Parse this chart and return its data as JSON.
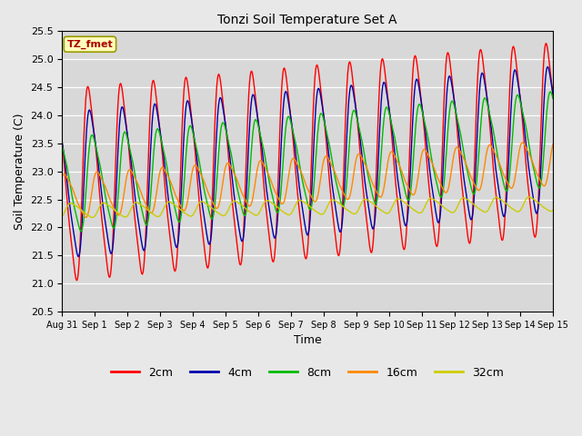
{
  "title": "Tonzi Soil Temperature Set A",
  "xlabel": "Time",
  "ylabel": "Soil Temperature (C)",
  "ylim": [
    20.5,
    25.5
  ],
  "annotation": "TZ_fmet",
  "x_tick_labels": [
    "Aug 31",
    "Sep 1",
    "Sep 2",
    "Sep 3",
    "Sep 4",
    "Sep 5",
    "Sep 6",
    "Sep 7",
    "Sep 8",
    "Sep 9",
    "Sep 10",
    "Sep 11",
    "Sep 12",
    "Sep 13",
    "Sep 14",
    "Sep 15"
  ],
  "legend_entries": [
    "2cm",
    "4cm",
    "8cm",
    "16cm",
    "32cm"
  ],
  "legend_colors": [
    "#ff0000",
    "#0000aa",
    "#00bb00",
    "#ff8800",
    "#cccc00"
  ],
  "series": {
    "2cm": {
      "color": "#ff0000",
      "amplitude": 1.72,
      "base": 22.75,
      "phase": 0.62,
      "trend": 0.055
    },
    "4cm": {
      "color": "#0000aa",
      "amplitude": 1.3,
      "base": 22.75,
      "phase": 0.67,
      "trend": 0.055
    },
    "8cm": {
      "color": "#00bb00",
      "amplitude": 0.85,
      "base": 22.75,
      "phase": 0.75,
      "trend": 0.055
    },
    "16cm": {
      "color": "#ff8800",
      "amplitude": 0.4,
      "base": 22.55,
      "phase": 0.9,
      "trend": 0.04
    },
    "32cm": {
      "color": "#cccc00",
      "amplitude": 0.13,
      "base": 22.3,
      "phase": 1.1,
      "trend": 0.008
    }
  },
  "bg_color": "#d8d8d8",
  "plot_bg_color": "#d8d8d8",
  "fig_bg_color": "#e8e8e8"
}
